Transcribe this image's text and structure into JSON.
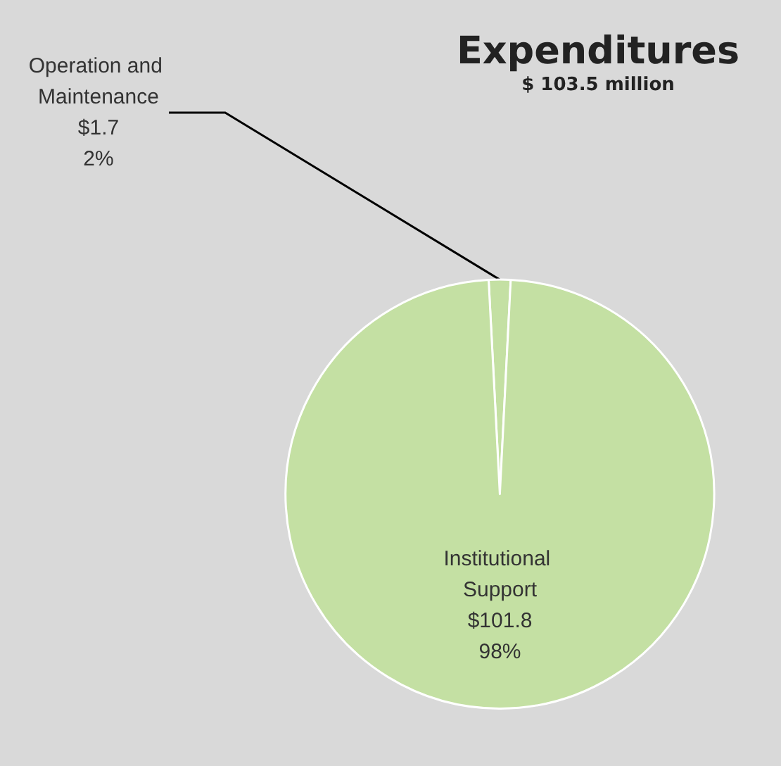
{
  "chart_data": {
    "type": "pie",
    "title": "Expenditures",
    "subtitle": "$ 103.5 million",
    "categories": [
      "Operation and Maintenance",
      "Institutional Support"
    ],
    "values": [
      1.7,
      101.8
    ],
    "value_labels": [
      "$1.7\n2%",
      "$101.8\n98%"
    ],
    "colors": [
      "#c4e0a3",
      "#c4e0a3"
    ],
    "legend": false
  }
}
